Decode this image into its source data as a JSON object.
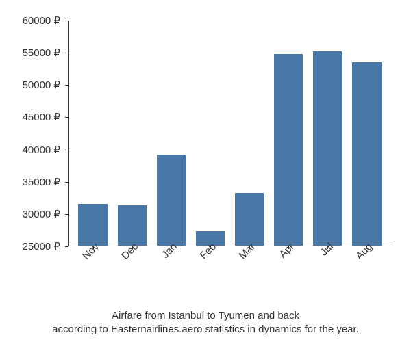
{
  "chart": {
    "type": "bar",
    "categories": [
      "Nov",
      "Dec",
      "Jan",
      "Feb",
      "Mar",
      "Apr",
      "Jul",
      "Aug"
    ],
    "values": [
      31500,
      31300,
      39200,
      27200,
      33200,
      54800,
      55200,
      53500
    ],
    "bar_color": "#4878a8",
    "axis_color": "#333333",
    "tick_font_size": 15,
    "ymin": 25000,
    "ymax": 60000,
    "ytick_step": 5000,
    "currency_symbol": "₽",
    "y_tick_labels": [
      "25000 ₽",
      "30000 ₽",
      "35000 ₽",
      "40000 ₽",
      "45000 ₽",
      "50000 ₽",
      "55000 ₽",
      "60000 ₽"
    ],
    "background_color": "#ffffff",
    "xlabel_rotation_deg": -45,
    "bar_width_ratio": 0.74
  },
  "caption": {
    "line1": "Airfare from Istanbul to Tyumen and back",
    "line2": "according to Easternairlines.aero statistics in dynamics for the year."
  }
}
